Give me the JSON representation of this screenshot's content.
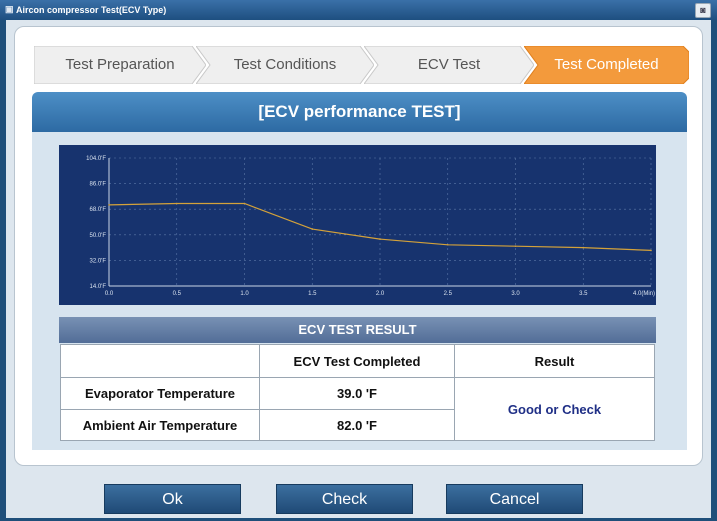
{
  "window": {
    "title": "Aircon compressor Test(ECV Type)",
    "app_icon": "car-icon",
    "restore_icon": "restore-icon"
  },
  "steps": [
    {
      "label": "Test Preparation",
      "state": "done"
    },
    {
      "label": "Test Conditions",
      "state": "done"
    },
    {
      "label": "ECV Test",
      "state": "done"
    },
    {
      "label": "Test Completed",
      "state": "active"
    }
  ],
  "colors": {
    "active_step": "#f39a3c",
    "inactive_step": "#efefef",
    "accent": "#2d6aa3",
    "chart_bg": "#17336e",
    "line": "#d4a23a"
  },
  "section_title": "[ECV performance TEST]",
  "chart_data": {
    "type": "line",
    "title": "",
    "xlabel": "",
    "ylabel": "",
    "x_ticks": [
      "0.0",
      "0.5",
      "1.0",
      "1.5",
      "2.0",
      "2.5",
      "3.0",
      "3.5",
      "4.0(Min)"
    ],
    "y_ticks": [
      "104.0'F",
      "86.0'F",
      "68.0'F",
      "50.0'F",
      "32.0'F",
      "14.0'F"
    ],
    "xlim": [
      0,
      4.0
    ],
    "ylim": [
      14,
      104
    ],
    "grid": true,
    "series": [
      {
        "x": [
          0.0,
          0.5,
          1.0,
          1.5,
          2.0,
          2.5,
          3.0,
          3.5,
          4.0
        ],
        "y": [
          71,
          72,
          72,
          54,
          47,
          43,
          42,
          41,
          39
        ]
      }
    ]
  },
  "result": {
    "title": "ECV TEST RESULT",
    "col_headers": [
      "",
      "ECV Test Completed",
      "Result"
    ],
    "rows": [
      {
        "label": "Evaporator Temperature",
        "value": "39.0 'F"
      },
      {
        "label": "Ambient Air Temperature",
        "value": "82.0 'F"
      }
    ],
    "verdict": "Good or Check"
  },
  "buttons": {
    "ok": "Ok",
    "check": "Check",
    "cancel": "Cancel"
  }
}
